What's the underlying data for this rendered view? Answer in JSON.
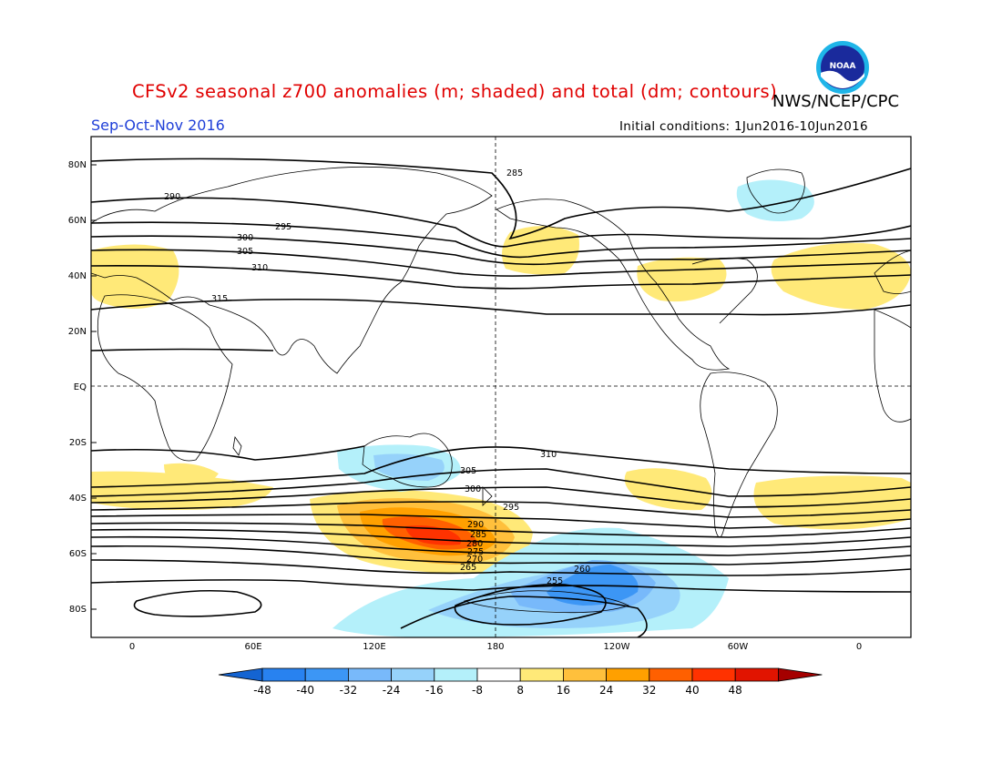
{
  "header": {
    "title": "CFSv2 seasonal z700 anomalies (m; shaded) and total (dm; contours)",
    "agency": "NWS/NCEP/CPC",
    "logo_text": "NOAA",
    "period": "Sep-Oct-Nov 2016",
    "initial_conditions": "Initial conditions: 1Jun2016-10Jun2016"
  },
  "map": {
    "lat_labels": [
      "80N",
      "60N",
      "40N",
      "20N",
      "EQ",
      "20S",
      "40S",
      "60S",
      "80S"
    ],
    "lon_labels": [
      "0",
      "60E",
      "120E",
      "180",
      "120W",
      "60W",
      "0"
    ],
    "contour_labels": [
      {
        "text": "285",
        "pos": "NH 285 line near 180"
      },
      {
        "text": "290",
        "pos": "NH 290"
      },
      {
        "text": "295",
        "pos": "NH 295"
      },
      {
        "text": "300",
        "pos": "NH 300"
      },
      {
        "text": "305",
        "pos": "NH 305"
      },
      {
        "text": "310",
        "pos": "NH 310"
      },
      {
        "text": "315",
        "pos": "NH 315"
      },
      {
        "text": "310",
        "pos": "SH 310"
      },
      {
        "text": "305",
        "pos": "SH 305"
      },
      {
        "text": "300",
        "pos": "SH 300"
      },
      {
        "text": "295",
        "pos": "SH 295"
      },
      {
        "text": "290",
        "pos": "SH 290"
      },
      {
        "text": "285",
        "pos": "SH 285"
      },
      {
        "text": "280",
        "pos": "SH 280"
      },
      {
        "text": "275",
        "pos": "SH 275"
      },
      {
        "text": "270",
        "pos": "SH 270"
      },
      {
        "text": "265",
        "pos": "SH 265"
      },
      {
        "text": "260",
        "pos": "SH 260"
      },
      {
        "text": "255",
        "pos": "SH 255"
      }
    ]
  },
  "colorbar": {
    "labels": [
      "-48",
      "-40",
      "-32",
      "-24",
      "-16",
      "-8",
      "8",
      "16",
      "24",
      "32",
      "40",
      "48"
    ],
    "colors": [
      "#1464d2",
      "#2882f0",
      "#3c96f5",
      "#78b9fa",
      "#96d2fa",
      "#b4f0fa",
      "#ffffff",
      "#ffe978",
      "#ffc03c",
      "#ffa000",
      "#ff6000",
      "#ff3200",
      "#e11400",
      "#a50000"
    ]
  }
}
